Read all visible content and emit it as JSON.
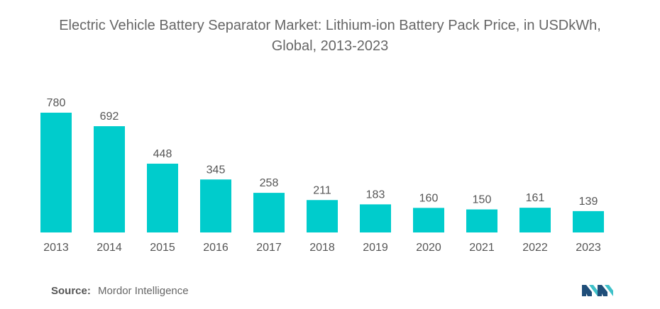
{
  "title_line1": "Electric Vehicle Battery Separator Market: Lithium-ion Battery Pack Price, in USDkWh,",
  "title_line2": "Global, 2013-2023",
  "source_label": "Source:",
  "source_text": "Mordor Intelligence",
  "colors": {
    "bar": "#00CCCC",
    "text": "#555555",
    "axis": "#BFBFBF",
    "logo_dark": "#1F4E79",
    "logo_light": "#3FC1C9"
  },
  "chart_data": {
    "type": "bar",
    "title": "Electric Vehicle Battery Separator Market: Lithium-ion Battery Pack Price, in USDkWh, Global, 2013-2023",
    "categories": [
      "2013",
      "2014",
      "2015",
      "2016",
      "2017",
      "2018",
      "2019",
      "2020",
      "2021",
      "2022",
      "2023"
    ],
    "values": [
      780,
      692,
      448,
      345,
      258,
      211,
      183,
      160,
      150,
      161,
      139
    ],
    "data_labels": true,
    "grid": false,
    "ylim": [
      0,
      800
    ],
    "xlabel": "",
    "ylabel": ""
  }
}
